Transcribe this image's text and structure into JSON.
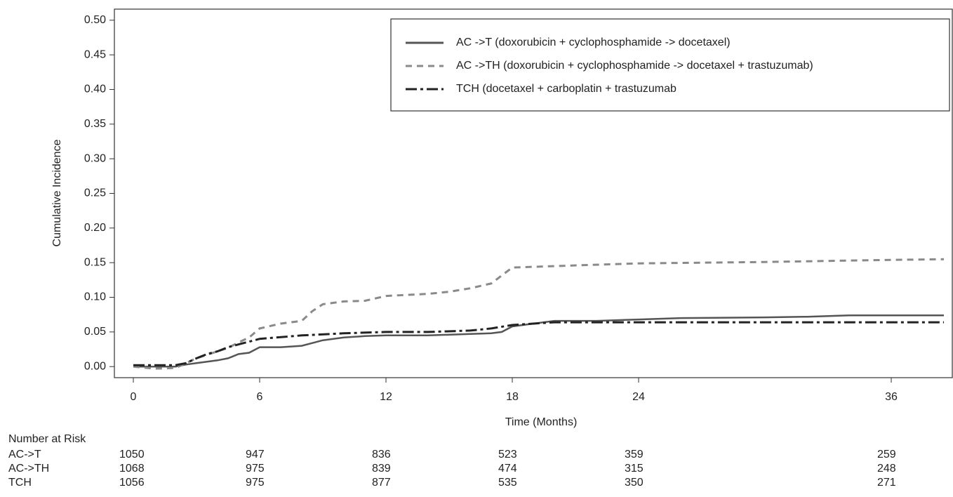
{
  "chart_data": {
    "type": "line",
    "xlabel": "Time (Months)",
    "ylabel": "Cumulative Incidence",
    "xlim": [
      -0.9,
      38.9
    ],
    "ylim": [
      -0.016,
      0.516
    ],
    "xticks": [
      0,
      6,
      12,
      18,
      24,
      36
    ],
    "yticks": [
      {
        "value": 0,
        "label": "0.00"
      },
      {
        "value": 0.05,
        "label": "0.05"
      },
      {
        "value": 0.1,
        "label": "0.10"
      },
      {
        "value": 0.15,
        "label": "0.15"
      },
      {
        "value": 0.2,
        "label": "0.20"
      },
      {
        "value": 0.25,
        "label": "0.25"
      },
      {
        "value": 0.3,
        "label": "0.30"
      },
      {
        "value": 0.35,
        "label": "0.35"
      },
      {
        "value": 0.4,
        "label": "0.40"
      },
      {
        "value": 0.45,
        "label": "0.45"
      },
      {
        "value": 0.5,
        "label": "0.50"
      }
    ],
    "legend": "top-right",
    "series": [
      {
        "name": "AC ->T (doxorubicin + cyclophosphamide -> docetaxel)",
        "color": "#555555",
        "style": "solid",
        "x": [
          0,
          2,
          2.5,
          3,
          3.5,
          4,
          4.5,
          5,
          5.5,
          6,
          7,
          8,
          8.5,
          9,
          10,
          11,
          12,
          14,
          16,
          17,
          17.5,
          18,
          19,
          20,
          22,
          24,
          26,
          30,
          32,
          34,
          36,
          38.5
        ],
        "values": [
          0,
          0,
          0.003,
          0.005,
          0.007,
          0.009,
          0.012,
          0.018,
          0.02,
          0.028,
          0.028,
          0.03,
          0.034,
          0.038,
          0.042,
          0.044,
          0.045,
          0.045,
          0.047,
          0.048,
          0.05,
          0.058,
          0.062,
          0.066,
          0.066,
          0.068,
          0.07,
          0.071,
          0.072,
          0.074,
          0.074,
          0.074
        ]
      },
      {
        "name": "AC ->TH (doxorubicin + cyclophosphamide -> docetaxel + trastuzumab)",
        "color": "#8a8a8a",
        "style": "dashed",
        "x": [
          0,
          1,
          2,
          2.5,
          3,
          3.5,
          4,
          4.5,
          5,
          5.5,
          6,
          7,
          8,
          8.5,
          9,
          10,
          11,
          12,
          14,
          15,
          16,
          17,
          18,
          20,
          22,
          24,
          30,
          36,
          38.5
        ],
        "values": [
          0,
          -0.003,
          -0.002,
          0.005,
          0.012,
          0.017,
          0.022,
          0.027,
          0.035,
          0.042,
          0.055,
          0.062,
          0.066,
          0.08,
          0.09,
          0.094,
          0.095,
          0.102,
          0.105,
          0.108,
          0.113,
          0.12,
          0.143,
          0.145,
          0.147,
          0.149,
          0.151,
          0.154,
          0.155
        ]
      },
      {
        "name": "TCH (docetaxel + carboplatin + trastuzumab",
        "color": "#222222",
        "style": "dashdot",
        "x": [
          0,
          2,
          2.5,
          3,
          3.5,
          4,
          4.5,
          5,
          5.5,
          6,
          8,
          10,
          12,
          14,
          16,
          17,
          18,
          19,
          20,
          22,
          38.5
        ],
        "values": [
          0.002,
          0.002,
          0.005,
          0.012,
          0.018,
          0.022,
          0.028,
          0.032,
          0.036,
          0.04,
          0.045,
          0.048,
          0.05,
          0.05,
          0.052,
          0.055,
          0.06,
          0.062,
          0.064,
          0.064,
          0.064
        ]
      }
    ]
  },
  "risk_table": {
    "title": "Number at Risk",
    "rows": [
      {
        "name": "AC->T",
        "values": [
          1050,
          947,
          836,
          523,
          359,
          259
        ]
      },
      {
        "name": "AC->TH",
        "values": [
          1068,
          975,
          839,
          474,
          315,
          248
        ]
      },
      {
        "name": "TCH",
        "values": [
          1056,
          975,
          877,
          535,
          350,
          271
        ]
      }
    ]
  }
}
